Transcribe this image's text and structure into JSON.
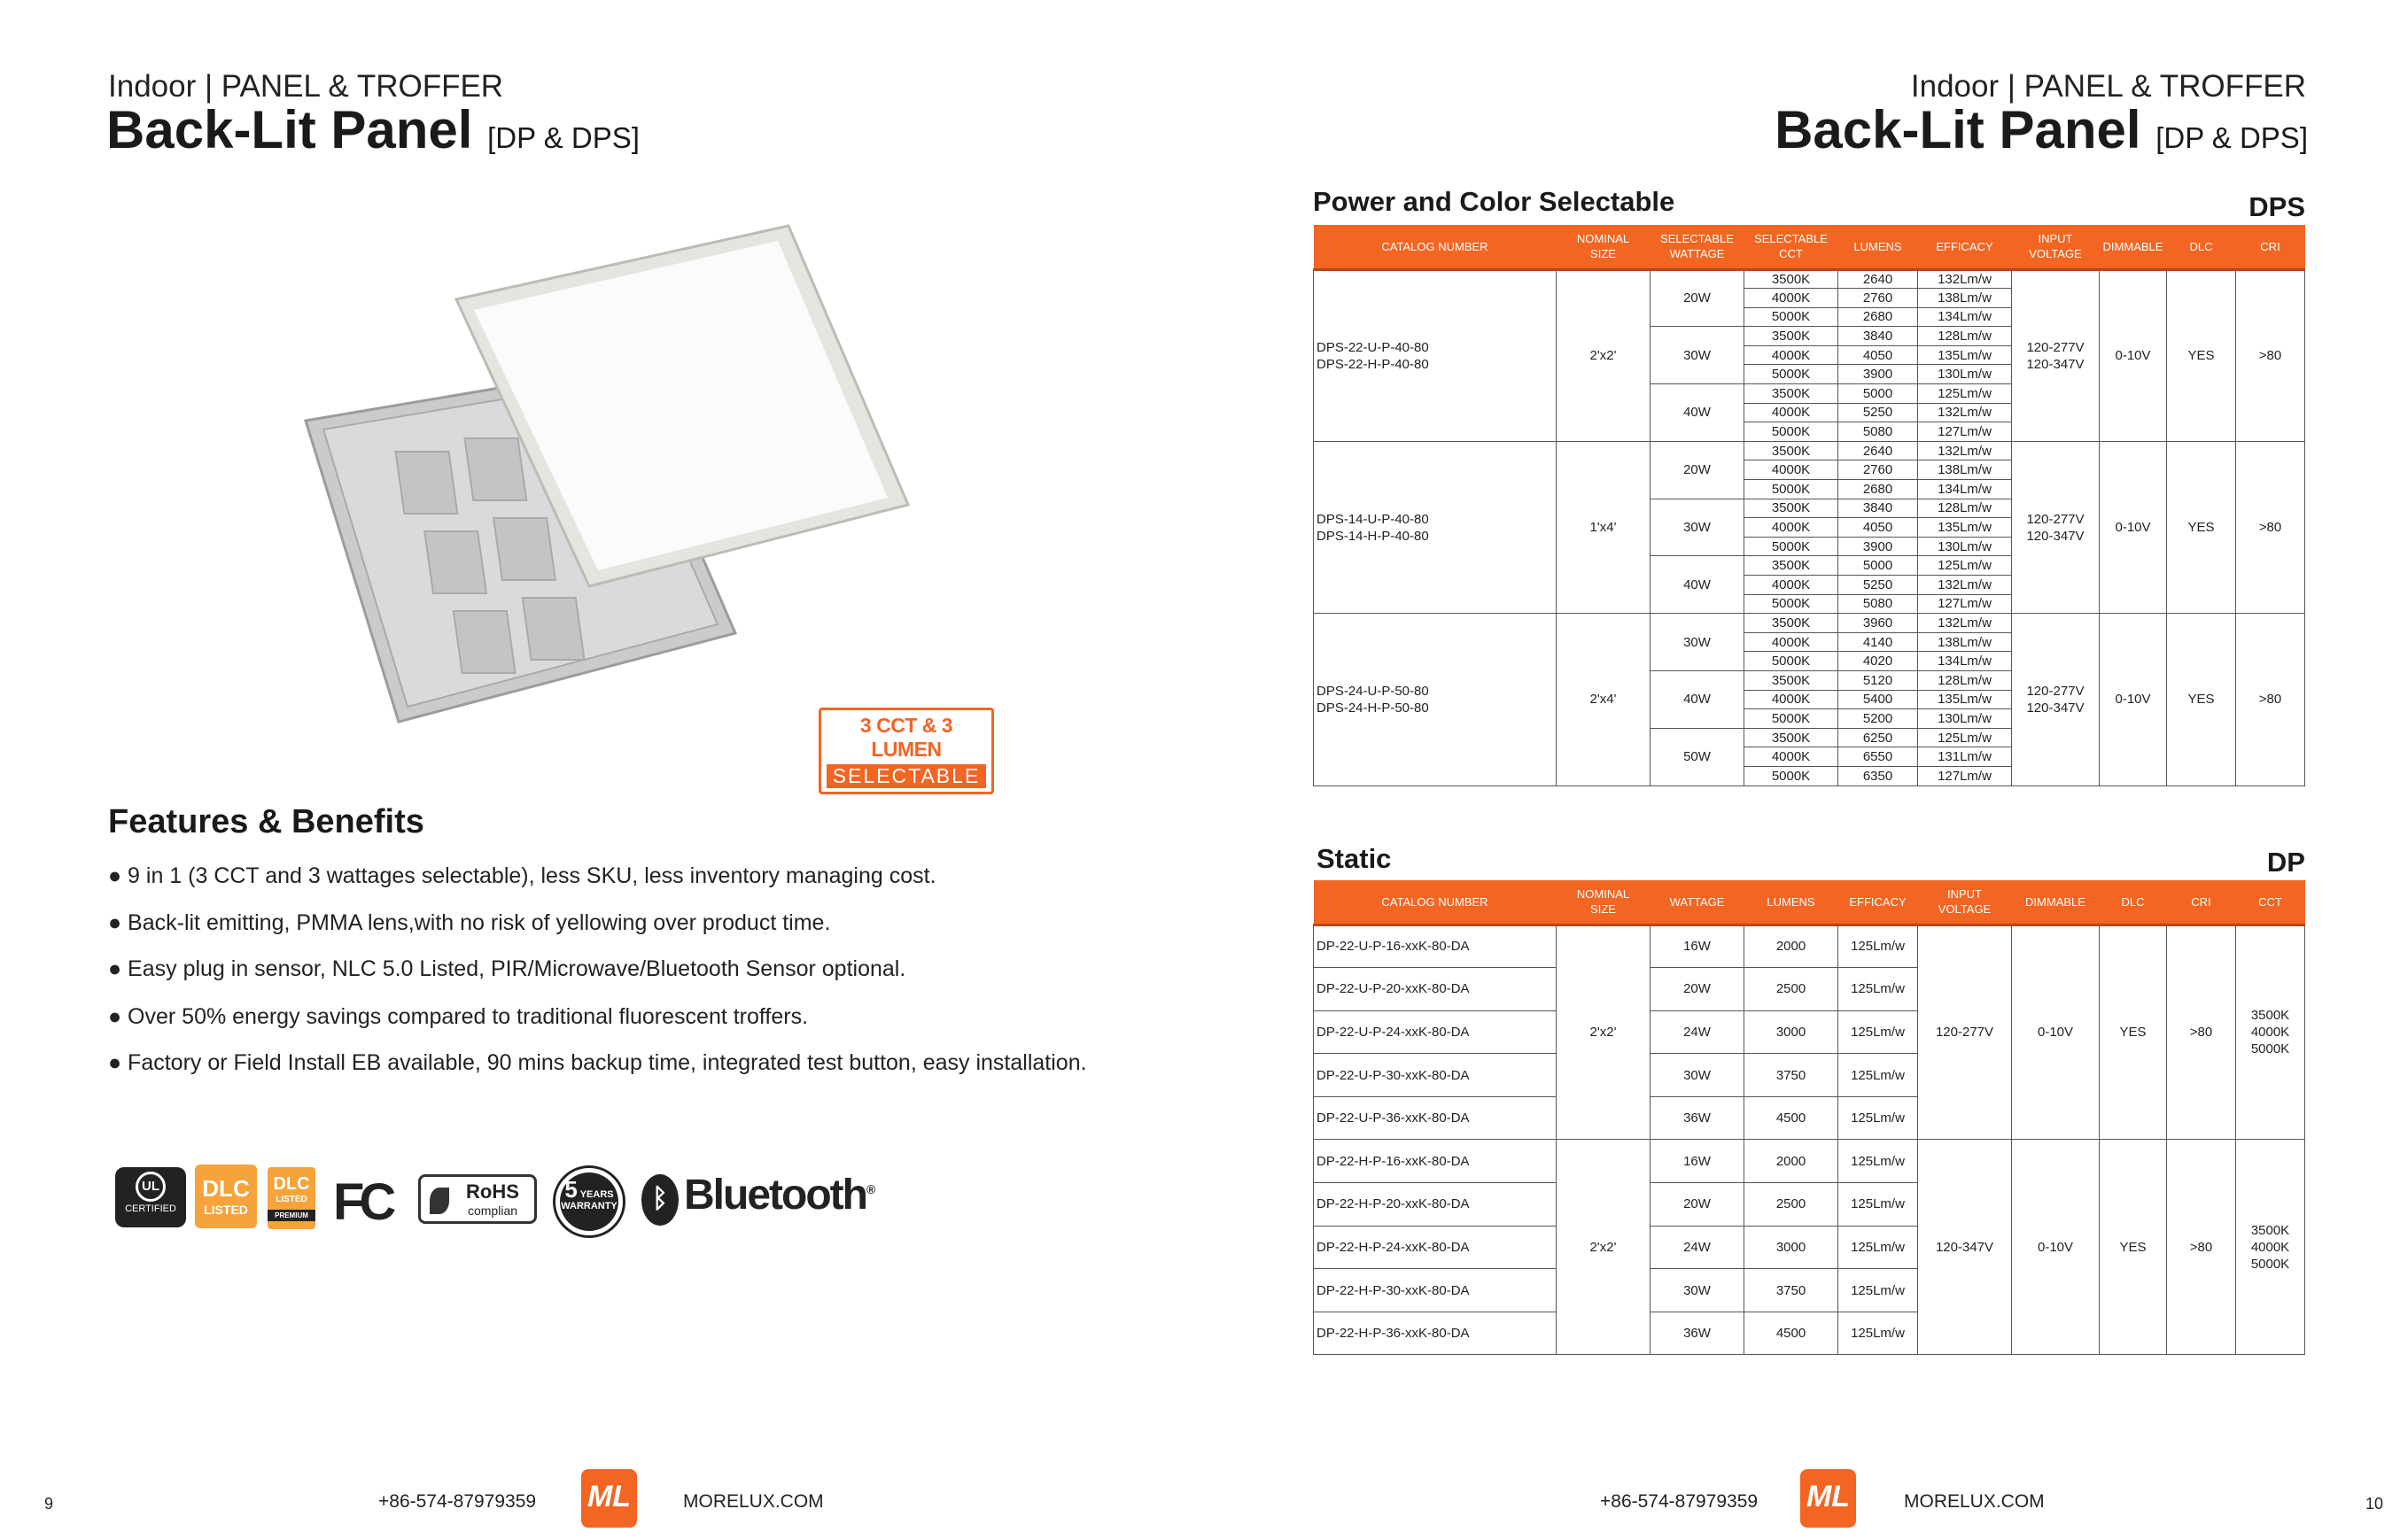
{
  "left_page": {
    "subtitle": "Indoor | PANEL & TROFFER",
    "title": "Back-Lit Panel",
    "title_suffix": "[DP & DPS]",
    "badge_line1": "3 CCT & 3 LUMEN",
    "badge_line2": "SELECTABLE",
    "features_heading": "Features & Benefits",
    "features": [
      "● 9 in 1 (3 CCT and 3 wattages selectable), less SKU, less inventory managing cost.",
      "● Back-lit emitting, PMMA lens,with no risk of yellowing over product time.",
      "● Easy plug in sensor, NLC 5.0 Listed, PIR/Microwave/Bluetooth Sensor optional.",
      "● Over 50% energy savings compared to traditional fluorescent troffers.",
      "● Factory or Field Install EB available, 90 mins backup time, integrated test button, easy installation."
    ],
    "certifications": [
      "UL CERTIFIED",
      "DLC LISTED",
      "DLC LISTED PREMIUM",
      "FC",
      "RoHS complian",
      "5 YEARS WARRANTY",
      "Bluetooth"
    ],
    "page_number": "9",
    "phone": "+86-574-87979359",
    "website": "MORELUX.COM"
  },
  "right_page": {
    "subtitle": "Indoor | PANEL & TROFFER",
    "title": "Back-Lit Panel",
    "title_suffix": "[DP & DPS]",
    "page_number": "10",
    "phone": "+86-574-87979359",
    "website": "MORELUX.COM"
  },
  "brand": {
    "logo_text": "ML",
    "accent": "#f26522"
  },
  "dps": {
    "heading": "Power and Color Selectable",
    "code": "DPS",
    "headers": [
      "CATALOG NUMBER",
      "NOMINAL SIZE",
      "SELECTABLE WATTAGE",
      "SELECTABLE CCT",
      "LUMENS",
      "EFFICACY",
      "INPUT VOLTAGE",
      "DIMMABLE",
      "DLC",
      "CRI"
    ],
    "groups": [
      {
        "catalog": [
          "DPS-22-U-P-40-80",
          "DPS-22-H-P-40-80"
        ],
        "size": "2'x2'",
        "voltage": [
          "120-277V",
          "120-347V"
        ],
        "dimmable": "0-10V",
        "dlc": "YES",
        "cri": ">80",
        "wattages": [
          {
            "w": "20W",
            "rows": [
              [
                "3500K",
                "2640",
                "132Lm/w"
              ],
              [
                "4000K",
                "2760",
                "138Lm/w"
              ],
              [
                "5000K",
                "2680",
                "134Lm/w"
              ]
            ]
          },
          {
            "w": "30W",
            "rows": [
              [
                "3500K",
                "3840",
                "128Lm/w"
              ],
              [
                "4000K",
                "4050",
                "135Lm/w"
              ],
              [
                "5000K",
                "3900",
                "130Lm/w"
              ]
            ]
          },
          {
            "w": "40W",
            "rows": [
              [
                "3500K",
                "5000",
                "125Lm/w"
              ],
              [
                "4000K",
                "5250",
                "132Lm/w"
              ],
              [
                "5000K",
                "5080",
                "127Lm/w"
              ]
            ]
          }
        ]
      },
      {
        "catalog": [
          "DPS-14-U-P-40-80",
          "DPS-14-H-P-40-80"
        ],
        "size": "1'x4'",
        "voltage": [
          "120-277V",
          "120-347V"
        ],
        "dimmable": "0-10V",
        "dlc": "YES",
        "cri": ">80",
        "wattages": [
          {
            "w": "20W",
            "rows": [
              [
                "3500K",
                "2640",
                "132Lm/w"
              ],
              [
                "4000K",
                "2760",
                "138Lm/w"
              ],
              [
                "5000K",
                "2680",
                "134Lm/w"
              ]
            ]
          },
          {
            "w": "30W",
            "rows": [
              [
                "3500K",
                "3840",
                "128Lm/w"
              ],
              [
                "4000K",
                "4050",
                "135Lm/w"
              ],
              [
                "5000K",
                "3900",
                "130Lm/w"
              ]
            ]
          },
          {
            "w": "40W",
            "rows": [
              [
                "3500K",
                "5000",
                "125Lm/w"
              ],
              [
                "4000K",
                "5250",
                "132Lm/w"
              ],
              [
                "5000K",
                "5080",
                "127Lm/w"
              ]
            ]
          }
        ]
      },
      {
        "catalog": [
          "DPS-24-U-P-50-80",
          "DPS-24-H-P-50-80"
        ],
        "size": "2'x4'",
        "voltage": [
          "120-277V",
          "120-347V"
        ],
        "dimmable": "0-10V",
        "dlc": "YES",
        "cri": ">80",
        "wattages": [
          {
            "w": "30W",
            "rows": [
              [
                "3500K",
                "3960",
                "132Lm/w"
              ],
              [
                "4000K",
                "4140",
                "138Lm/w"
              ],
              [
                "5000K",
                "4020",
                "134Lm/w"
              ]
            ]
          },
          {
            "w": "40W",
            "rows": [
              [
                "3500K",
                "5120",
                "128Lm/w"
              ],
              [
                "4000K",
                "5400",
                "135Lm/w"
              ],
              [
                "5000K",
                "5200",
                "130Lm/w"
              ]
            ]
          },
          {
            "w": "50W",
            "rows": [
              [
                "3500K",
                "6250",
                "125Lm/w"
              ],
              [
                "4000K",
                "6550",
                "131Lm/w"
              ],
              [
                "5000K",
                "6350",
                "127Lm/w"
              ]
            ]
          }
        ]
      }
    ]
  },
  "dp": {
    "heading": "Static",
    "code": "DP",
    "headers": [
      "CATALOG NUMBER",
      "NOMINAL SIZE",
      "WATTAGE",
      "LUMENS",
      "EFFICACY",
      "INPUT VOLTAGE",
      "DIMMABLE",
      "DLC",
      "CRI",
      "CCT"
    ],
    "groups": [
      {
        "size": "2'x2'",
        "voltage": "120-277V",
        "dimmable": "0-10V",
        "dlc": "YES",
        "cri": ">80",
        "cct": [
          "3500K",
          "4000K",
          "5000K"
        ],
        "rows": [
          [
            "DP-22-U-P-16-xxK-80-DA",
            "16W",
            "2000",
            "125Lm/w"
          ],
          [
            "DP-22-U-P-20-xxK-80-DA",
            "20W",
            "2500",
            "125Lm/w"
          ],
          [
            "DP-22-U-P-24-xxK-80-DA",
            "24W",
            "3000",
            "125Lm/w"
          ],
          [
            "DP-22-U-P-30-xxK-80-DA",
            "30W",
            "3750",
            "125Lm/w"
          ],
          [
            "DP-22-U-P-36-xxK-80-DA",
            "36W",
            "4500",
            "125Lm/w"
          ]
        ]
      },
      {
        "size": "2'x2'",
        "voltage": "120-347V",
        "dimmable": "0-10V",
        "dlc": "YES",
        "cri": ">80",
        "cct": [
          "3500K",
          "4000K",
          "5000K"
        ],
        "rows": [
          [
            "DP-22-H-P-16-xxK-80-DA",
            "16W",
            "2000",
            "125Lm/w"
          ],
          [
            "DP-22-H-P-20-xxK-80-DA",
            "20W",
            "2500",
            "125Lm/w"
          ],
          [
            "DP-22-H-P-24-xxK-80-DA",
            "24W",
            "3000",
            "125Lm/w"
          ],
          [
            "DP-22-H-P-30-xxK-80-DA",
            "30W",
            "3750",
            "125Lm/w"
          ],
          [
            "DP-22-H-P-36-xxK-80-DA",
            "36W",
            "4500",
            "125Lm/w"
          ]
        ]
      }
    ]
  }
}
